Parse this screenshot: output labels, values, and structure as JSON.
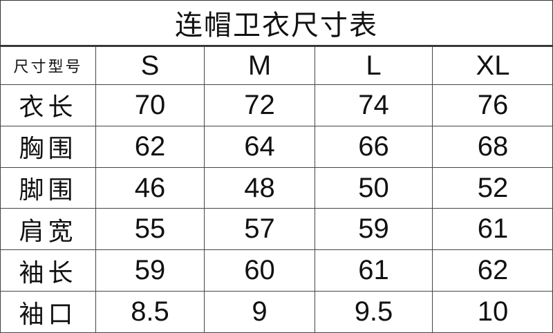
{
  "title": "连帽卫衣尺寸表",
  "header": {
    "label": "尺寸型号",
    "sizes": [
      "S",
      "M",
      "L",
      "XL"
    ]
  },
  "rows": [
    {
      "label": "衣长",
      "values": [
        "70",
        "72",
        "74",
        "76"
      ]
    },
    {
      "label": "胸围",
      "values": [
        "62",
        "64",
        "66",
        "68"
      ]
    },
    {
      "label": "脚围",
      "values": [
        "46",
        "48",
        "50",
        "52"
      ]
    },
    {
      "label": "肩宽",
      "values": [
        "55",
        "57",
        "59",
        "61"
      ]
    },
    {
      "label": "袖长",
      "values": [
        "59",
        "60",
        "61",
        "62"
      ]
    },
    {
      "label": "袖口",
      "values": [
        "8.5",
        "9",
        "9.5",
        "10"
      ]
    }
  ]
}
